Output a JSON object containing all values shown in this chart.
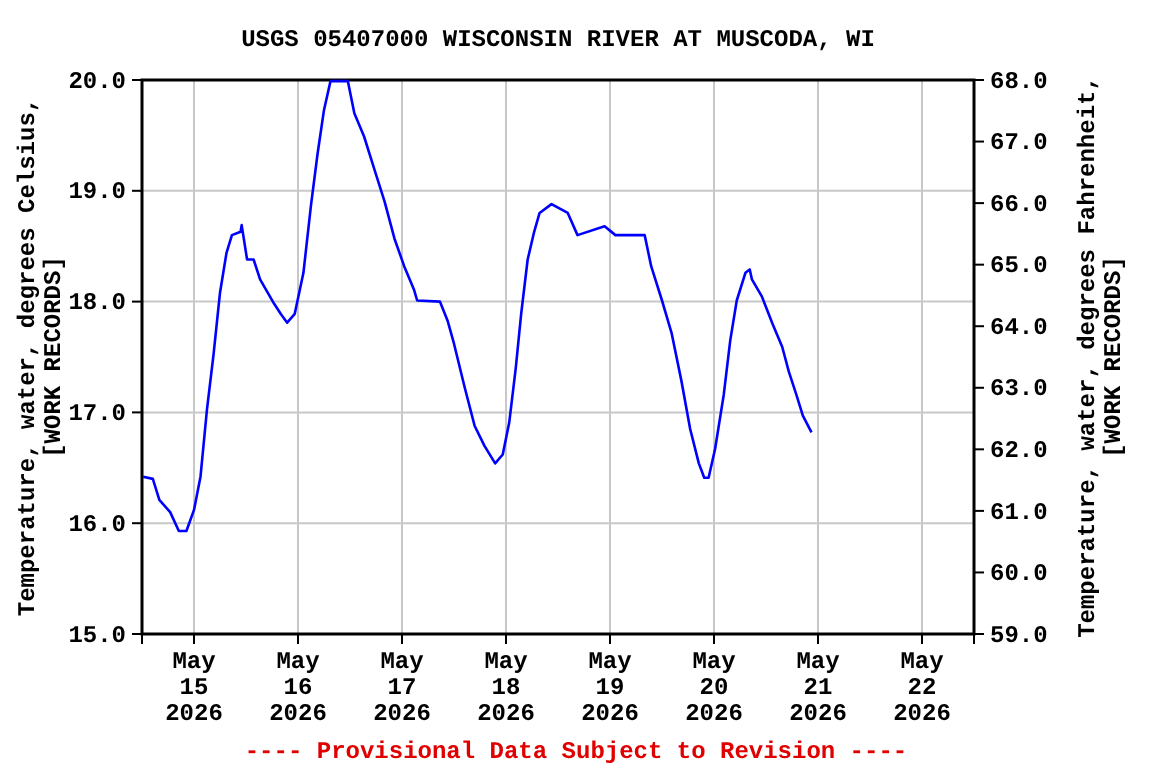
{
  "chart_data": {
    "type": "line",
    "title": "USGS 05407000 WISCONSIN RIVER AT MUSCODA, WI",
    "ylabel": "Temperature, water, degrees Celsius,\n[WORK RECORDS]",
    "y2label": "Temperature, water, degrees Fahrenheit,\n[WORK RECORDS]",
    "annotations": [
      "---- Provisional Data Subject to Revision ----"
    ],
    "xlim": [
      "2026-05-14T12:00",
      "2026-05-22T12:00"
    ],
    "xticks": [
      {
        "value": "2026-05-15",
        "label": "May\n15\n2026"
      },
      {
        "value": "2026-05-16",
        "label": "May\n16\n2026"
      },
      {
        "value": "2026-05-17",
        "label": "May\n17\n2026"
      },
      {
        "value": "2026-05-18",
        "label": "May\n18\n2026"
      },
      {
        "value": "2026-05-19",
        "label": "May\n19\n2026"
      },
      {
        "value": "2026-05-20",
        "label": "May\n20\n2026"
      },
      {
        "value": "2026-05-21",
        "label": "May\n21\n2026"
      },
      {
        "value": "2026-05-22",
        "label": "May\n22\n2026"
      }
    ],
    "ylim": [
      15,
      20
    ],
    "yticks": [
      {
        "value": 15,
        "label": "15.0"
      },
      {
        "value": 16,
        "label": "16.0"
      },
      {
        "value": 17,
        "label": "17.0"
      },
      {
        "value": 18,
        "label": "18.0"
      },
      {
        "value": 19,
        "label": "19.0"
      },
      {
        "value": 20,
        "label": "20.0"
      }
    ],
    "y2lim": [
      59,
      68
    ],
    "y2ticks": [
      {
        "value": 59,
        "label": "59.0"
      },
      {
        "value": 60,
        "label": "60.0"
      },
      {
        "value": 61,
        "label": "61.0"
      },
      {
        "value": 62,
        "label": "62.0"
      },
      {
        "value": 63,
        "label": "63.0"
      },
      {
        "value": 64,
        "label": "64.0"
      },
      {
        "value": 65,
        "label": "65.0"
      },
      {
        "value": 66,
        "label": "66.0"
      },
      {
        "value": 67,
        "label": "67.0"
      },
      {
        "value": 68,
        "label": "68.0"
      }
    ],
    "grid": true,
    "series": [
      {
        "color": "#0000ff",
        "x": [
          "2026-05-14T12:15",
          "2026-05-14T14:30",
          "2026-05-14T16:00",
          "2026-05-14T18:30",
          "2026-05-14T20:30",
          "2026-05-14T22:15",
          "2026-05-15T00:00",
          "2026-05-15T01:30",
          "2026-05-15T03:00",
          "2026-05-15T04:30",
          "2026-05-15T06:00",
          "2026-05-15T07:30",
          "2026-05-15T08:45",
          "2026-05-15T10:45",
          "2026-05-15T11:00",
          "2026-05-15T12:15",
          "2026-05-15T13:45",
          "2026-05-15T15:15",
          "2026-05-15T18:30",
          "2026-05-15T20:00",
          "2026-05-15T21:30",
          "2026-05-15T23:15",
          "2026-05-16T01:15",
          "2026-05-16T03:00",
          "2026-05-16T04:30",
          "2026-05-16T06:00",
          "2026-05-16T07:30",
          "2026-05-16T11:30",
          "2026-05-16T13:00",
          "2026-05-16T15:15",
          "2026-05-16T17:30",
          "2026-05-16T20:00",
          "2026-05-16T22:15",
          "2026-05-17T00:30",
          "2026-05-17T02:45",
          "2026-05-17T03:30",
          "2026-05-17T08:45",
          "2026-05-17T10:30",
          "2026-05-17T12:00",
          "2026-05-17T14:30",
          "2026-05-17T16:45",
          "2026-05-17T19:00",
          "2026-05-17T21:30",
          "2026-05-17T23:15",
          "2026-05-18T00:45",
          "2026-05-18T02:15",
          "2026-05-18T03:30",
          "2026-05-18T05:00",
          "2026-05-18T06:30",
          "2026-05-18T07:45",
          "2026-05-18T10:30",
          "2026-05-18T14:15",
          "2026-05-18T16:30",
          "2026-05-18T22:45",
          "2026-05-19T01:15",
          "2026-05-19T08:00",
          "2026-05-19T09:30",
          "2026-05-19T12:00",
          "2026-05-19T14:15",
          "2026-05-19T16:30",
          "2026-05-19T18:30",
          "2026-05-19T20:30",
          "2026-05-19T21:45",
          "2026-05-19T22:45",
          "2026-05-20T00:15",
          "2026-05-20T02:15",
          "2026-05-20T03:45",
          "2026-05-20T05:15",
          "2026-05-20T07:15",
          "2026-05-20T08:15",
          "2026-05-20T08:45",
          "2026-05-20T11:00",
          "2026-05-20T13:30",
          "2026-05-20T15:45",
          "2026-05-20T17:15",
          "2026-05-20T19:00",
          "2026-05-20T20:30",
          "2026-05-20T22:30"
        ],
        "values": [
          16.42,
          16.4,
          16.21,
          16.1,
          15.93,
          15.93,
          16.12,
          16.42,
          17.03,
          17.52,
          18.08,
          18.44,
          18.6,
          18.63,
          18.69,
          18.38,
          18.38,
          18.2,
          17.98,
          17.89,
          17.81,
          17.89,
          18.26,
          18.87,
          19.33,
          19.73,
          19.99,
          19.99,
          19.7,
          19.49,
          19.21,
          18.9,
          18.57,
          18.32,
          18.11,
          18.01,
          18.0,
          17.83,
          17.62,
          17.22,
          16.88,
          16.7,
          16.54,
          16.62,
          16.91,
          17.4,
          17.89,
          18.38,
          18.63,
          18.8,
          18.88,
          18.8,
          18.6,
          18.68,
          18.6,
          18.6,
          18.32,
          18.01,
          17.71,
          17.28,
          16.85,
          16.54,
          16.41,
          16.41,
          16.67,
          17.16,
          17.65,
          18.01,
          18.26,
          18.29,
          18.2,
          18.05,
          17.8,
          17.59,
          17.37,
          17.16,
          16.97,
          16.82
        ]
      }
    ]
  }
}
